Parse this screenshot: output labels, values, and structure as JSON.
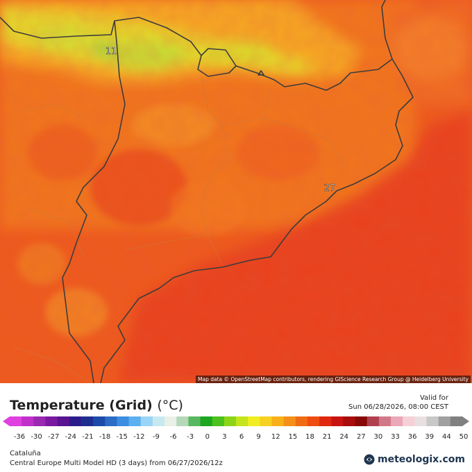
{
  "map": {
    "labels": [
      {
        "name": "value-label-11",
        "text": "11"
      },
      {
        "name": "value-label-27",
        "text": "27"
      }
    ],
    "attribution": "Map data © OpenStreetMap contributors, rendering GIScience Research Group @ Heidelberg University"
  },
  "legend": {
    "title": "Temperature (Grid)",
    "unit": "(°C)",
    "valid_label": "Valid for",
    "valid_time": "Sun 06/28/2026, 08:00 CEST",
    "region": "Cataluña",
    "model": "Central Europe Multi Model HD (3 days) from 06/27/2026/12z",
    "brand": "meteologix.com",
    "brand_icon": "meteologix-logo-icon",
    "ticks": [
      "-36",
      "-30",
      "-27",
      "-24",
      "-21",
      "-18",
      "-15",
      "-12",
      "-9",
      "-6",
      "-3",
      "0",
      "3",
      "6",
      "9",
      "12",
      "15",
      "18",
      "21",
      "24",
      "27",
      "30",
      "33",
      "36",
      "39",
      "44",
      "50"
    ],
    "colors": [
      "#e040e0",
      "#c030c8",
      "#9a28b0",
      "#7a1aa0",
      "#5a1490",
      "#2c1c8a",
      "#1e2e8e",
      "#1c4aa8",
      "#2a6cc6",
      "#3c8ee0",
      "#5cb0f0",
      "#9ad4f6",
      "#c8e8f0",
      "#e8f0e8",
      "#b4d8b8",
      "#58b860",
      "#1ea620",
      "#4cc01c",
      "#8cd418",
      "#c4e41c",
      "#f0ee20",
      "#f8d020",
      "#f8b018",
      "#f49018",
      "#f06c14",
      "#ee4c10",
      "#e02810",
      "#c81410",
      "#a80c0c",
      "#880808",
      "#b04050",
      "#d07888",
      "#eaa8b8",
      "#f6d0d8",
      "#e8e0e0",
      "#c8c8c8",
      "#a0a0a0",
      "#808080"
    ]
  }
}
